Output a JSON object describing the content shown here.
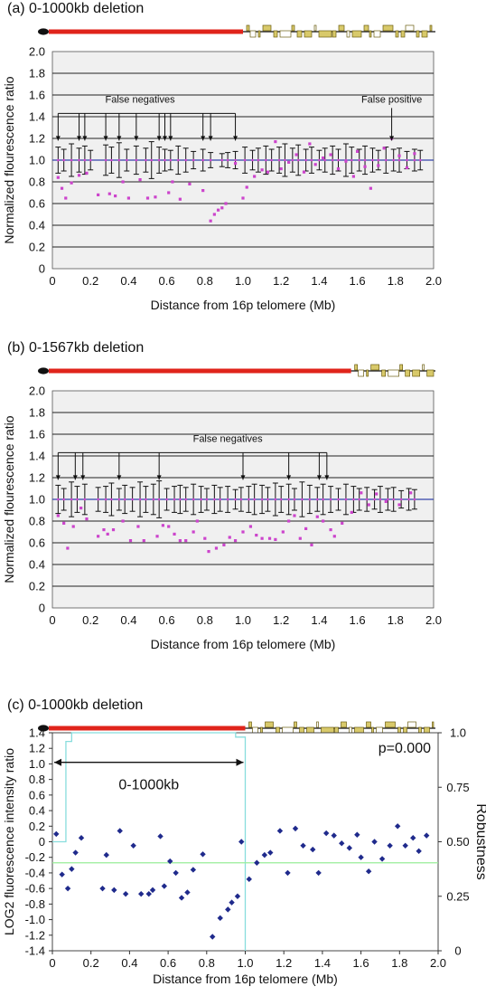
{
  "chart_data": [
    {
      "type": "scatter",
      "title": "(a) 0-1000kb deletion",
      "xlabel": "Distance from 16p telomere (Mb)",
      "ylabel": "Normalized flourescence ratio",
      "xlim": [
        0,
        2.0
      ],
      "ylim": [
        0,
        2.0
      ],
      "x_ticks": [
        "0",
        "0.2",
        "0.4",
        "0.6",
        "0.8",
        "1.0",
        "1.2",
        "1.4",
        "1.6",
        "1.8",
        "2.0"
      ],
      "y_ticks": [
        "0",
        "0.2",
        "0.4",
        "0.6",
        "0.8",
        "1.0",
        "1.2",
        "1.4",
        "1.6",
        "1.8",
        "2.0"
      ],
      "grid": true,
      "deletion_range_mb": [
        0,
        1.0
      ],
      "reference_value": 1.0,
      "error_bars": {
        "x": [
          0.03,
          0.06,
          0.1,
          0.14,
          0.17,
          0.2,
          0.28,
          0.31,
          0.35,
          0.39,
          0.44,
          0.49,
          0.52,
          0.56,
          0.59,
          0.62,
          0.66,
          0.7,
          0.74,
          0.79,
          0.83,
          0.89,
          0.92,
          0.96,
          1.01,
          1.05,
          1.08,
          1.12,
          1.15,
          1.19,
          1.22,
          1.26,
          1.29,
          1.33,
          1.36,
          1.4,
          1.43,
          1.47,
          1.5,
          1.54,
          1.57,
          1.61,
          1.64,
          1.68,
          1.71,
          1.75,
          1.79,
          1.82,
          1.86,
          1.9,
          1.93
        ],
        "half_width": [
          0.12,
          0.1,
          0.15,
          0.11,
          0.13,
          0.09,
          0.14,
          0.12,
          0.16,
          0.1,
          0.13,
          0.11,
          0.17,
          0.12,
          0.1,
          0.09,
          0.13,
          0.11,
          0.08,
          0.1,
          0.07,
          0.06,
          0.07,
          0.08,
          0.12,
          0.09,
          0.11,
          0.13,
          0.1,
          0.12,
          0.15,
          0.11,
          0.14,
          0.1,
          0.12,
          0.09,
          0.11,
          0.13,
          0.1,
          0.15,
          0.12,
          0.1,
          0.13,
          0.11,
          0.09,
          0.12,
          0.1,
          0.11,
          0.08,
          0.1,
          0.09
        ]
      },
      "points": [
        [
          0.03,
          0.84
        ],
        [
          0.05,
          0.74
        ],
        [
          0.07,
          0.65
        ],
        [
          0.1,
          0.79
        ],
        [
          0.14,
          0.86
        ],
        [
          0.18,
          0.88
        ],
        [
          0.24,
          0.68
        ],
        [
          0.3,
          0.69
        ],
        [
          0.33,
          0.67
        ],
        [
          0.37,
          0.8
        ],
        [
          0.4,
          0.65
        ],
        [
          0.46,
          0.82
        ],
        [
          0.5,
          0.65
        ],
        [
          0.54,
          0.66
        ],
        [
          0.61,
          0.7
        ],
        [
          0.63,
          0.8
        ],
        [
          0.67,
          0.64
        ],
        [
          0.72,
          0.78
        ],
        [
          0.79,
          0.72
        ],
        [
          0.83,
          0.44
        ],
        [
          0.85,
          0.5
        ],
        [
          0.87,
          0.54
        ],
        [
          0.89,
          0.56
        ],
        [
          0.91,
          0.6
        ],
        [
          0.96,
          0.97
        ],
        [
          1.0,
          0.65
        ],
        [
          1.02,
          0.75
        ],
        [
          1.06,
          0.85
        ],
        [
          1.1,
          0.91
        ],
        [
          1.13,
          0.89
        ],
        [
          1.17,
          1.17
        ],
        [
          1.2,
          0.92
        ],
        [
          1.24,
          0.98
        ],
        [
          1.28,
          1.05
        ],
        [
          1.32,
          0.89
        ],
        [
          1.35,
          1.15
        ],
        [
          1.38,
          0.96
        ],
        [
          1.42,
          1.02
        ],
        [
          1.46,
          1.05
        ],
        [
          1.5,
          0.92
        ],
        [
          1.54,
          0.99
        ],
        [
          1.58,
          0.85
        ],
        [
          1.6,
          1.08
        ],
        [
          1.64,
          0.94
        ],
        [
          1.67,
          0.74
        ],
        [
          1.71,
          0.95
        ],
        [
          1.74,
          1.11
        ],
        [
          1.78,
          1.2
        ],
        [
          1.82,
          1.04
        ],
        [
          1.86,
          0.93
        ],
        [
          1.9,
          1.06
        ]
      ],
      "arrows_label": "False negatives",
      "arrow_x": [
        0.03,
        0.14,
        0.17,
        0.28,
        0.35,
        0.44,
        0.56,
        0.59,
        0.62,
        0.79,
        0.83,
        0.96
      ],
      "positive_label": "False positive",
      "positive_x": 1.78,
      "colors": {
        "bar": "#111111",
        "point": "#cc44cc",
        "reference": "#3344aa",
        "plot_bg": "#f0f0f0",
        "grid": "#222222"
      }
    },
    {
      "type": "scatter",
      "title": "(b) 0-1567kb deletion",
      "xlabel": "Distance from 16p telomere (Mb)",
      "ylabel": "Normalized flourescence ratio",
      "xlim": [
        0,
        2.0
      ],
      "ylim": [
        0,
        2.0
      ],
      "x_ticks": [
        "0",
        "0.2",
        "0.4",
        "0.6",
        "0.8",
        "1.0",
        "1.2",
        "1.4",
        "1.6",
        "1.8",
        "2.0"
      ],
      "y_ticks": [
        "0",
        "0.2",
        "0.4",
        "0.6",
        "0.8",
        "1.0",
        "1.2",
        "1.4",
        "1.6",
        "1.8",
        "2.0"
      ],
      "grid": true,
      "deletion_range_mb": [
        0,
        1.567
      ],
      "reference_value": 1.0,
      "error_bars": {
        "x": [
          0.03,
          0.06,
          0.1,
          0.13,
          0.17,
          0.24,
          0.28,
          0.31,
          0.35,
          0.38,
          0.42,
          0.46,
          0.49,
          0.53,
          0.56,
          0.6,
          0.64,
          0.67,
          0.7,
          0.74,
          0.78,
          0.81,
          0.85,
          0.88,
          0.92,
          0.96,
          0.99,
          1.03,
          1.06,
          1.1,
          1.13,
          1.17,
          1.2,
          1.24,
          1.27,
          1.31,
          1.35,
          1.39,
          1.42,
          1.46,
          1.5,
          1.54,
          1.58,
          1.61,
          1.65,
          1.69,
          1.72,
          1.76,
          1.79,
          1.83,
          1.87,
          1.9
        ],
        "half_width": [
          0.13,
          0.1,
          0.16,
          0.12,
          0.14,
          0.11,
          0.12,
          0.15,
          0.1,
          0.13,
          0.11,
          0.16,
          0.12,
          0.14,
          0.17,
          0.1,
          0.12,
          0.13,
          0.11,
          0.14,
          0.12,
          0.1,
          0.13,
          0.11,
          0.12,
          0.09,
          0.11,
          0.12,
          0.14,
          0.13,
          0.11,
          0.15,
          0.12,
          0.14,
          0.1,
          0.16,
          0.13,
          0.11,
          0.14,
          0.12,
          0.1,
          0.14,
          0.12,
          0.1,
          0.11,
          0.09,
          0.12,
          0.1,
          0.11,
          0.08,
          0.1,
          0.09
        ]
      },
      "points": [
        [
          0.03,
          0.85
        ],
        [
          0.06,
          0.78
        ],
        [
          0.08,
          0.55
        ],
        [
          0.11,
          0.75
        ],
        [
          0.15,
          0.92
        ],
        [
          0.18,
          0.82
        ],
        [
          0.24,
          0.66
        ],
        [
          0.27,
          0.72
        ],
        [
          0.29,
          0.68
        ],
        [
          0.32,
          0.72
        ],
        [
          0.37,
          0.8
        ],
        [
          0.41,
          0.62
        ],
        [
          0.45,
          0.75
        ],
        [
          0.48,
          0.62
        ],
        [
          0.55,
          0.66
        ],
        [
          0.58,
          0.76
        ],
        [
          0.61,
          0.75
        ],
        [
          0.64,
          0.68
        ],
        [
          0.67,
          0.62
        ],
        [
          0.7,
          0.62
        ],
        [
          0.74,
          0.7
        ],
        [
          0.76,
          0.8
        ],
        [
          0.8,
          0.64
        ],
        [
          0.82,
          0.52
        ],
        [
          0.86,
          0.55
        ],
        [
          0.9,
          0.58
        ],
        [
          0.93,
          0.65
        ],
        [
          0.96,
          0.62
        ],
        [
          1.0,
          0.7
        ],
        [
          1.04,
          0.75
        ],
        [
          1.07,
          0.67
        ],
        [
          1.1,
          0.64
        ],
        [
          1.14,
          0.64
        ],
        [
          1.17,
          0.63
        ],
        [
          1.21,
          0.7
        ],
        [
          1.24,
          0.8
        ],
        [
          1.27,
          0.85
        ],
        [
          1.3,
          0.64
        ],
        [
          1.33,
          0.73
        ],
        [
          1.36,
          0.58
        ],
        [
          1.39,
          0.84
        ],
        [
          1.42,
          0.8
        ],
        [
          1.46,
          0.72
        ],
        [
          1.48,
          0.66
        ],
        [
          1.52,
          0.78
        ],
        [
          1.57,
          0.88
        ],
        [
          1.62,
          1.06
        ],
        [
          1.66,
          0.95
        ],
        [
          1.7,
          1.05
        ],
        [
          1.75,
          0.98
        ],
        [
          1.82,
          0.95
        ],
        [
          1.88,
          1.06
        ]
      ],
      "arrows_label": "False negatives",
      "arrow_x": [
        0.03,
        0.12,
        0.16,
        0.35,
        0.56,
        1.0,
        1.24,
        1.4,
        1.44
      ],
      "colors": {
        "bar": "#111111",
        "point": "#cc44cc",
        "reference": "#3344aa",
        "plot_bg": "#f0f0f0",
        "grid": "#222222"
      }
    },
    {
      "type": "scatter",
      "title": "(c) 0-1000kb deletion",
      "xlabel": "Distance from 16p telomere (Mb)",
      "ylabel": "LOG2 fluorescence intensity ratio",
      "y2label": "Robustness",
      "xlim": [
        0,
        2.0
      ],
      "ylim": [
        -1.4,
        1.4
      ],
      "y2lim": [
        0,
        1.0
      ],
      "x_ticks": [
        "0",
        "0.2",
        "0.4",
        "0.6",
        "0.8",
        "1.0",
        "1.2",
        "1.4",
        "1.6",
        "1.8",
        "2.0"
      ],
      "y_ticks": [
        "-1.4",
        "-1.2",
        "-1.0",
        "-0.8",
        "-0.6",
        "-0.4",
        "-0.2",
        "0",
        "0.2",
        "0.4",
        "0.6",
        "0.8",
        "1.0",
        "1.2",
        "1.4"
      ],
      "y2_ticks": [
        "0",
        "0.25",
        "0.50",
        "0.75",
        "1.0"
      ],
      "grid": false,
      "annotation": "p=0.000",
      "segment_label": "0-1000kb",
      "segment_x": [
        0,
        1.0
      ],
      "threshold": -0.27,
      "robustness_step": [
        [
          0,
          0.5
        ],
        [
          0.07,
          0.5
        ],
        [
          0.07,
          0.96
        ],
        [
          0.1,
          0.96
        ],
        [
          0.1,
          1.0
        ],
        [
          0.95,
          1.0
        ],
        [
          0.95,
          0.98
        ],
        [
          1.0,
          0.98
        ],
        [
          1.0,
          0.0
        ]
      ],
      "points": [
        [
          0.02,
          0.1
        ],
        [
          0.05,
          -0.42
        ],
        [
          0.08,
          -0.6
        ],
        [
          0.1,
          -0.35
        ],
        [
          0.12,
          -0.14
        ],
        [
          0.15,
          0.05
        ],
        [
          0.26,
          -0.6
        ],
        [
          0.28,
          -0.17
        ],
        [
          0.32,
          -0.62
        ],
        [
          0.35,
          0.14
        ],
        [
          0.38,
          -0.67
        ],
        [
          0.42,
          -0.05
        ],
        [
          0.46,
          -0.67
        ],
        [
          0.5,
          -0.67
        ],
        [
          0.52,
          -0.62
        ],
        [
          0.56,
          0.07
        ],
        [
          0.58,
          -0.57
        ],
        [
          0.61,
          -0.25
        ],
        [
          0.64,
          -0.4
        ],
        [
          0.67,
          -0.72
        ],
        [
          0.7,
          -0.65
        ],
        [
          0.73,
          -0.36
        ],
        [
          0.78,
          -0.16
        ],
        [
          0.83,
          -1.22
        ],
        [
          0.87,
          -0.98
        ],
        [
          0.91,
          -0.87
        ],
        [
          0.93,
          -0.78
        ],
        [
          0.96,
          -0.7
        ],
        [
          0.98,
          0.0
        ],
        [
          1.02,
          -0.48
        ],
        [
          1.06,
          -0.27
        ],
        [
          1.1,
          -0.17
        ],
        [
          1.13,
          -0.14
        ],
        [
          1.18,
          0.14
        ],
        [
          1.22,
          -0.4
        ],
        [
          1.26,
          0.17
        ],
        [
          1.3,
          -0.05
        ],
        [
          1.35,
          -0.1
        ],
        [
          1.38,
          -0.4
        ],
        [
          1.42,
          0.11
        ],
        [
          1.46,
          0.08
        ],
        [
          1.5,
          -0.02
        ],
        [
          1.54,
          -0.08
        ],
        [
          1.58,
          0.09
        ],
        [
          1.6,
          -0.2
        ],
        [
          1.64,
          -0.38
        ],
        [
          1.67,
          0.0
        ],
        [
          1.71,
          -0.22
        ],
        [
          1.75,
          -0.05
        ],
        [
          1.79,
          0.2
        ],
        [
          1.83,
          -0.05
        ],
        [
          1.87,
          0.05
        ],
        [
          1.9,
          -0.12
        ],
        [
          1.94,
          0.08
        ]
      ],
      "colors": {
        "point": "#1f2a8c",
        "threshold": "#99ee99",
        "robustness": "#88dddd"
      }
    }
  ],
  "map_colors": {
    "deletion": "#e0241b",
    "line": "#111111",
    "gene": "#d8c96a",
    "gene_stroke": "#6b5d10"
  }
}
